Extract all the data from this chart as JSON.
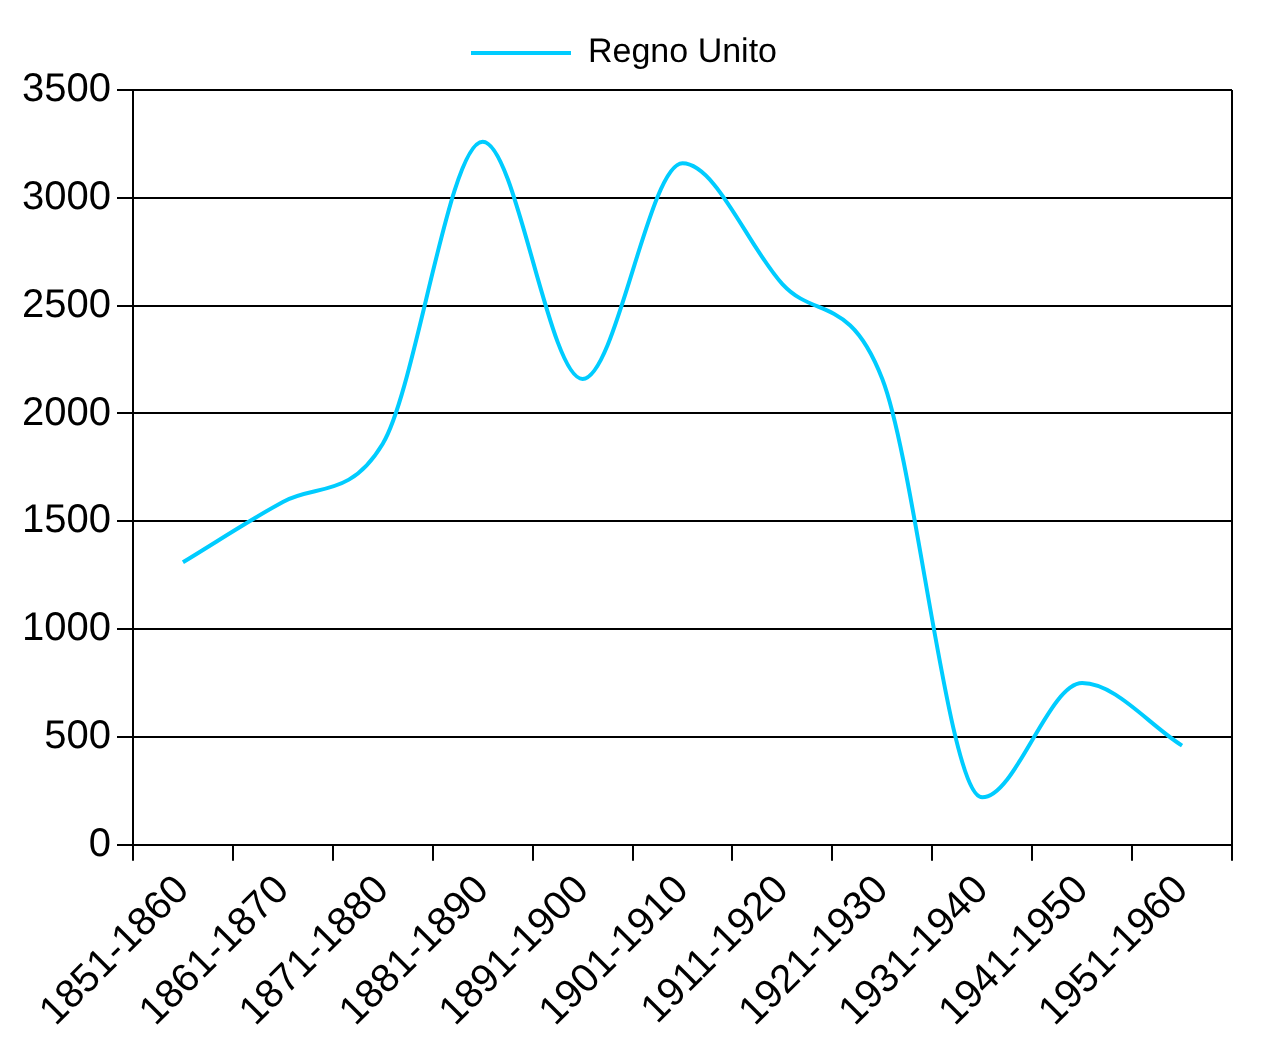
{
  "chart_data": {
    "type": "line",
    "categories": [
      "1851-1860",
      "1861-1870",
      "1871-1880",
      "1881-1890",
      "1891-1900",
      "1901-1910",
      "1911-1920",
      "1921-1930",
      "1931-1940",
      "1941-1950",
      "1951-1960"
    ],
    "series": [
      {
        "name": "Regno Unito",
        "color": "#00ccff",
        "values": [
          1310,
          1590,
          1860,
          3260,
          2160,
          3160,
          2600,
          2160,
          220,
          750,
          460
        ]
      }
    ],
    "ylim": [
      0,
      3500
    ],
    "yticks": [
      0,
      500,
      1000,
      1500,
      2000,
      2500,
      3000,
      3500
    ],
    "grid": "y",
    "legend": "top",
    "marker": "none"
  }
}
